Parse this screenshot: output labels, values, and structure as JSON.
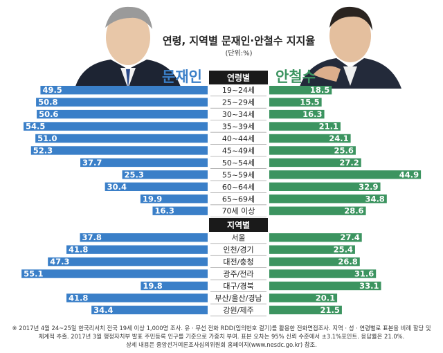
{
  "title": "연령, 지역별 문재인·안철수 지지율",
  "unit_label": "(단위:%)",
  "candidates": {
    "left": "문재인",
    "right": "안철수"
  },
  "colors": {
    "left": "#3a7fc8",
    "right": "#3c9460",
    "header": "#1a1a1a",
    "divider": "#9a9a9a"
  },
  "chart_data": [
    {
      "type": "bar",
      "section": "연령별",
      "categories": [
        "19~24세",
        "25~29세",
        "30~34세",
        "35~39세",
        "40~44세",
        "45~49세",
        "50~54세",
        "55~59세",
        "60~64세",
        "65~69세",
        "70세 이상"
      ],
      "series": [
        {
          "name": "문재인",
          "values": [
            49.5,
            50.8,
            50.6,
            54.5,
            51.0,
            52.3,
            37.7,
            25.3,
            30.4,
            19.9,
            16.3
          ]
        },
        {
          "name": "안철수",
          "values": [
            18.5,
            15.5,
            16.3,
            21.1,
            24.1,
            25.6,
            27.2,
            44.9,
            32.9,
            34.8,
            28.6
          ]
        }
      ],
      "value_labels": {
        "문재인": [
          "49.5",
          "50.8",
          "50.6",
          "54.5",
          "51.0",
          "52.3",
          "37.7",
          "25.3",
          "30.4",
          "19.9",
          "16.3"
        ],
        "안철수": [
          "18.5",
          "15.5",
          "16.3",
          "21.1",
          "24.1",
          "25.6",
          "27.2",
          "44.9",
          "32.9",
          "34.8",
          "28.6"
        ]
      }
    },
    {
      "type": "bar",
      "section": "지역별",
      "categories": [
        "서울",
        "인천/경기",
        "대전/충청",
        "광주/전라",
        "대구/경북",
        "부산/울산/경남",
        "강원/제주"
      ],
      "series": [
        {
          "name": "문재인",
          "values": [
            37.8,
            41.8,
            47.3,
            55.1,
            19.8,
            41.8,
            34.4
          ]
        },
        {
          "name": "안철수",
          "values": [
            27.4,
            25.4,
            26.8,
            31.6,
            33.1,
            20.1,
            21.5
          ]
        }
      ],
      "value_labels": {
        "문재인": [
          "37.8",
          "41.8",
          "47.3",
          "55.1",
          "19.8",
          "41.8",
          "34.4"
        ],
        "안철수": [
          "27.4",
          "25.4",
          "26.8",
          "31.6",
          "33.1",
          "20.1",
          "21.5"
        ]
      }
    }
  ],
  "footnote": [
    "※ 2017년 4월 24~25일 한국리서치 전국 19세 이상 1,000명 조사. 유 · 무선 전화 RDD(임의번호 걸기)를 활용한 전화면접조사. 지역 · 성 · 연령별로 표본을 비례 할당 및",
    "체계적 추출. 2017년 3월 행정자치부 발표 주민등록 인구를 기준으로 가중치 부여. 표본 오차는 95% 신뢰 수준에서 ±3.1%포인트. 응답률은 21.0%.",
    "상세 내용은 중앙선거여론조사심의위원회 홈페이지(www.nesdc.go.kr) 참조."
  ]
}
